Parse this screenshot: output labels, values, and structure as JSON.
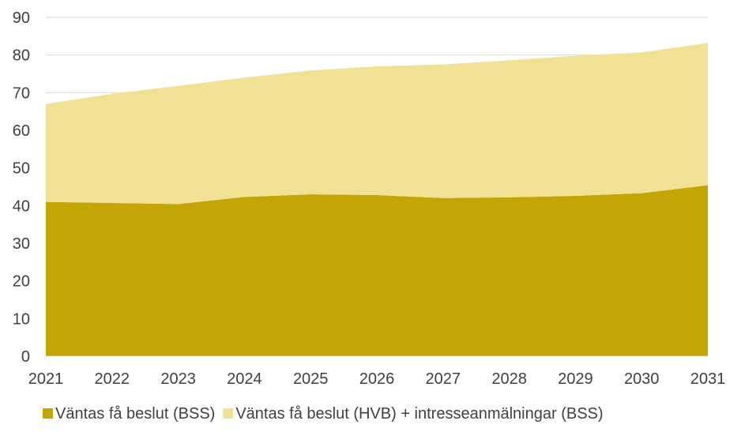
{
  "chart_data": {
    "type": "area",
    "stacked": true,
    "x": [
      "2021",
      "2022",
      "2023",
      "2024",
      "2025",
      "2026",
      "2027",
      "2028",
      "2029",
      "2030",
      "2031"
    ],
    "series": [
      {
        "name": "Väntas få beslut (BSS)",
        "color": "#c3a505",
        "values": [
          41.0,
          40.7,
          40.4,
          42.3,
          43.0,
          42.8,
          42.0,
          42.2,
          42.6,
          43.3,
          45.4
        ]
      },
      {
        "name": "Väntas få beslut (HVB) + intresseanmälningar (BSS)",
        "color": "#f1e195",
        "values": [
          26.0,
          29.0,
          31.4,
          31.7,
          32.9,
          34.2,
          35.5,
          36.4,
          37.2,
          37.4,
          37.8
        ]
      }
    ],
    "y_ticks": [
      "0",
      "10",
      "20",
      "30",
      "40",
      "50",
      "60",
      "70",
      "80",
      "90"
    ],
    "ylim": [
      0,
      90
    ],
    "gridlines": true,
    "gridline_color": "#d9d9d9",
    "legend_position": "bottom"
  }
}
